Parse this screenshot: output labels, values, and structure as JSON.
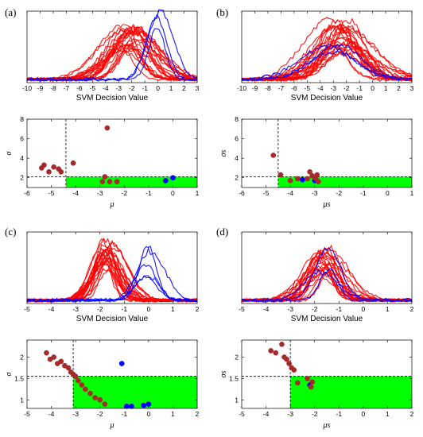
{
  "chart_data": [
    {
      "panel": "(a)",
      "histogram": {
        "type": "line",
        "xlabel": "SVM Decision Value",
        "xlim": [
          -10,
          3
        ],
        "xticks": [
          -10,
          -9,
          -8,
          -7,
          -6,
          -5,
          -4,
          -3,
          -2,
          -1,
          0,
          1,
          2,
          3
        ],
        "series": [
          {
            "color": "#ff0000",
            "count": 24,
            "peak": -2.2,
            "spread": 1.7,
            "height": 0.78
          },
          {
            "color": "#0000ff",
            "count": 3,
            "peak": 0.1,
            "spread": 0.8,
            "height": 0.92
          }
        ]
      },
      "scatter": {
        "type": "scatter",
        "xlabel": "μ",
        "ylabel": "σ",
        "xlim": [
          -6,
          1
        ],
        "ylim": [
          1,
          8
        ],
        "xticks": [
          -6,
          -5,
          -4,
          -3,
          -2,
          -1,
          0,
          1
        ],
        "yticks": [
          2,
          4,
          6,
          8
        ],
        "threshold_x": -4.4,
        "threshold_y": 2.1,
        "region_color": "#00ff00",
        "points": [
          {
            "x": -5.4,
            "y": 3.0,
            "c": "#a52a2a"
          },
          {
            "x": -5.3,
            "y": 3.3,
            "c": "#a52a2a"
          },
          {
            "x": -5.1,
            "y": 2.6,
            "c": "#a52a2a"
          },
          {
            "x": -4.9,
            "y": 3.1,
            "c": "#a52a2a"
          },
          {
            "x": -4.7,
            "y": 2.9,
            "c": "#a52a2a"
          },
          {
            "x": -4.6,
            "y": 2.6,
            "c": "#a52a2a"
          },
          {
            "x": -4.1,
            "y": 3.5,
            "c": "#a52a2a"
          },
          {
            "x": -2.9,
            "y": 1.6,
            "c": "#a52a2a"
          },
          {
            "x": -2.8,
            "y": 2.1,
            "c": "#a52a2a"
          },
          {
            "x": -2.7,
            "y": 7.1,
            "c": "#a52a2a"
          },
          {
            "x": -2.6,
            "y": 1.6,
            "c": "#a52a2a"
          },
          {
            "x": -2.3,
            "y": 1.6,
            "c": "#a52a2a"
          },
          {
            "x": -0.3,
            "y": 1.7,
            "c": "#0000ff"
          },
          {
            "x": 0.0,
            "y": 2.0,
            "c": "#0000ff"
          }
        ]
      }
    },
    {
      "panel": "(b)",
      "histogram": {
        "type": "line",
        "xlabel": "SVM Decision Value",
        "xlim": [
          -10,
          3
        ],
        "xticks": [
          -10,
          -9,
          -8,
          -7,
          -6,
          -5,
          -4,
          -3,
          -2,
          -1,
          0,
          1,
          2,
          3
        ],
        "series": [
          {
            "color": "#ff0000",
            "count": 24,
            "peak": -2.6,
            "spread": 1.9,
            "height": 0.82
          },
          {
            "color": "#0000ff",
            "count": 3,
            "peak": -2.8,
            "spread": 2.0,
            "height": 0.55
          }
        ]
      },
      "scatter": {
        "type": "scatter",
        "xlabel": "μs",
        "ylabel": "σs",
        "xlim": [
          -6,
          1
        ],
        "ylim": [
          1,
          8
        ],
        "xticks": [
          -6,
          -5,
          -4,
          -3,
          -2,
          -1,
          0,
          1
        ],
        "yticks": [
          2,
          4,
          6,
          8
        ],
        "threshold_x": -4.5,
        "threshold_y": 2.1,
        "region_color": "#00ff00",
        "points": [
          {
            "x": -4.7,
            "y": 4.3,
            "c": "#a52a2a"
          },
          {
            "x": -4.4,
            "y": 2.3,
            "c": "#a52a2a"
          },
          {
            "x": -4.0,
            "y": 1.7,
            "c": "#a52a2a"
          },
          {
            "x": -3.7,
            "y": 1.9,
            "c": "#a52a2a"
          },
          {
            "x": -3.5,
            "y": 1.8,
            "c": "#0000ff"
          },
          {
            "x": -3.3,
            "y": 1.9,
            "c": "#a52a2a"
          },
          {
            "x": -3.2,
            "y": 2.6,
            "c": "#a52a2a"
          },
          {
            "x": -3.1,
            "y": 2.2,
            "c": "#a52a2a"
          },
          {
            "x": -3.0,
            "y": 1.7,
            "c": "#0000ff"
          },
          {
            "x": -2.95,
            "y": 1.9,
            "c": "#a52a2a"
          },
          {
            "x": -2.9,
            "y": 2.3,
            "c": "#a52a2a"
          },
          {
            "x": -2.85,
            "y": 1.6,
            "c": "#a52a2a"
          }
        ]
      }
    },
    {
      "panel": "(c)",
      "histogram": {
        "type": "line",
        "xlabel": "SVM Decision Value",
        "xlim": [
          -5,
          2
        ],
        "xticks": [
          -5,
          -4,
          -3,
          -2,
          -1,
          0,
          1,
          2
        ],
        "series": [
          {
            "color": "#ff0000",
            "count": 24,
            "peak": -1.7,
            "spread": 0.55,
            "height": 0.82
          },
          {
            "color": "#0000ff",
            "count": 5,
            "peak": -0.1,
            "spread": 0.55,
            "height": 0.72
          }
        ]
      },
      "scatter": {
        "type": "scatter",
        "xlabel": "μ",
        "ylabel": "σ",
        "xlim": [
          -5,
          2
        ],
        "ylim": [
          0.8,
          2.4
        ],
        "xticks": [
          -5,
          -4,
          -3,
          -2,
          -1,
          0,
          1,
          2
        ],
        "yticks": [
          1,
          1.5,
          2
        ],
        "threshold_x": -3.1,
        "threshold_y": 1.55,
        "region_color": "#00ff00",
        "points": [
          {
            "x": -4.2,
            "y": 2.1,
            "c": "#a52a2a"
          },
          {
            "x": -4.05,
            "y": 1.95,
            "c": "#a52a2a"
          },
          {
            "x": -3.9,
            "y": 2.0,
            "c": "#a52a2a"
          },
          {
            "x": -3.75,
            "y": 1.85,
            "c": "#a52a2a"
          },
          {
            "x": -3.6,
            "y": 1.9,
            "c": "#a52a2a"
          },
          {
            "x": -3.45,
            "y": 1.8,
            "c": "#a52a2a"
          },
          {
            "x": -3.3,
            "y": 1.75,
            "c": "#a52a2a"
          },
          {
            "x": -3.2,
            "y": 1.65,
            "c": "#a52a2a"
          },
          {
            "x": -3.1,
            "y": 1.6,
            "c": "#a52a2a"
          },
          {
            "x": -3.0,
            "y": 1.55,
            "c": "#a52a2a"
          },
          {
            "x": -2.9,
            "y": 1.45,
            "c": "#a52a2a"
          },
          {
            "x": -2.75,
            "y": 1.35,
            "c": "#a52a2a"
          },
          {
            "x": -2.6,
            "y": 1.25,
            "c": "#a52a2a"
          },
          {
            "x": -2.4,
            "y": 1.15,
            "c": "#a52a2a"
          },
          {
            "x": -2.2,
            "y": 1.05,
            "c": "#a52a2a"
          },
          {
            "x": -2.0,
            "y": 1.0,
            "c": "#a52a2a"
          },
          {
            "x": -1.8,
            "y": 0.9,
            "c": "#a52a2a"
          },
          {
            "x": -1.1,
            "y": 1.85,
            "c": "#0000ff"
          },
          {
            "x": -0.9,
            "y": 0.85,
            "c": "#0000ff"
          },
          {
            "x": -0.7,
            "y": 0.85,
            "c": "#0000ff"
          },
          {
            "x": -0.2,
            "y": 0.87,
            "c": "#0000ff"
          },
          {
            "x": 0.0,
            "y": 0.9,
            "c": "#0000ff"
          }
        ]
      }
    },
    {
      "panel": "(d)",
      "histogram": {
        "type": "line",
        "xlabel": "SVM Decision Value",
        "xlim": [
          -5,
          2
        ],
        "xticks": [
          -5,
          -4,
          -3,
          -2,
          -1,
          0,
          1,
          2
        ],
        "series": [
          {
            "color": "#ff0000",
            "count": 22,
            "peak": -1.6,
            "spread": 0.7,
            "height": 0.74
          },
          {
            "color": "#0000ff",
            "count": 3,
            "peak": -1.6,
            "spread": 0.6,
            "height": 0.88
          }
        ]
      },
      "scatter": {
        "type": "scatter",
        "xlabel": "μs",
        "ylabel": "σs",
        "xlim": [
          -5,
          2
        ],
        "ylim": [
          0.8,
          2.4
        ],
        "xticks": [
          -5,
          -4,
          -3,
          -2,
          -1,
          0,
          1,
          2
        ],
        "yticks": [
          1,
          1.5,
          2
        ],
        "threshold_x": -3.0,
        "threshold_y": 1.55,
        "region_color": "#00ff00",
        "points": [
          {
            "x": -3.8,
            "y": 2.15,
            "c": "#a52a2a"
          },
          {
            "x": -3.6,
            "y": 2.1,
            "c": "#a52a2a"
          },
          {
            "x": -3.35,
            "y": 2.3,
            "c": "#a52a2a"
          },
          {
            "x": -3.25,
            "y": 2.0,
            "c": "#a52a2a"
          },
          {
            "x": -3.15,
            "y": 1.95,
            "c": "#a52a2a"
          },
          {
            "x": -3.05,
            "y": 1.85,
            "c": "#a52a2a"
          },
          {
            "x": -2.95,
            "y": 1.75,
            "c": "#a52a2a"
          },
          {
            "x": -2.85,
            "y": 1.7,
            "c": "#a52a2a"
          },
          {
            "x": -2.7,
            "y": 1.4,
            "c": "#a52a2a"
          },
          {
            "x": -2.3,
            "y": 1.5,
            "c": "#a52a2a"
          },
          {
            "x": -2.2,
            "y": 1.35,
            "c": "#0000ff"
          },
          {
            "x": -2.1,
            "y": 1.42,
            "c": "#a52a2a"
          },
          {
            "x": -2.15,
            "y": 1.3,
            "c": "#a52a2a"
          }
        ]
      }
    }
  ]
}
